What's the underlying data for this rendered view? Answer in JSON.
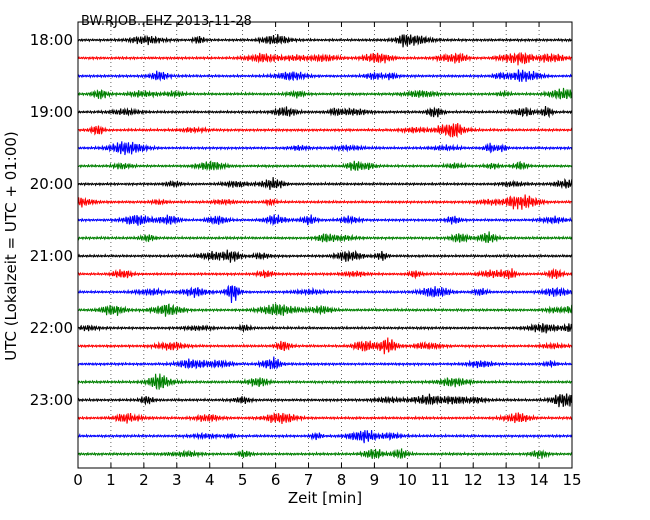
{
  "chart_data": {
    "type": "line",
    "title": "BW.RJOB..EHZ 2013-11-28",
    "xlabel": "Zeit  [min]",
    "ylabel": "UTC (Lokalzeit = UTC + 01:00)",
    "xlim": [
      0,
      15
    ],
    "x_ticks": [
      "0",
      "1",
      "2",
      "3",
      "4",
      "5",
      "6",
      "7",
      "8",
      "9",
      "10",
      "11",
      "12",
      "13",
      "14",
      "15"
    ],
    "y_ticks": [
      "18:00",
      "19:00",
      "20:00",
      "21:00",
      "22:00",
      "23:00"
    ],
    "grid": "vertical dotted",
    "row_interval_min": 15,
    "rows": [
      {
        "start": "18:00",
        "color": "#000000"
      },
      {
        "start": "18:15",
        "color": "#ff0000"
      },
      {
        "start": "18:30",
        "color": "#0000ff"
      },
      {
        "start": "18:45",
        "color": "#008000"
      },
      {
        "start": "19:00",
        "color": "#000000"
      },
      {
        "start": "19:15",
        "color": "#ff0000"
      },
      {
        "start": "19:30",
        "color": "#0000ff"
      },
      {
        "start": "19:45",
        "color": "#008000"
      },
      {
        "start": "20:00",
        "color": "#000000"
      },
      {
        "start": "20:15",
        "color": "#ff0000"
      },
      {
        "start": "20:30",
        "color": "#0000ff"
      },
      {
        "start": "20:45",
        "color": "#008000"
      },
      {
        "start": "21:00",
        "color": "#000000"
      },
      {
        "start": "21:15",
        "color": "#ff0000"
      },
      {
        "start": "21:30",
        "color": "#0000ff"
      },
      {
        "start": "21:45",
        "color": "#008000"
      },
      {
        "start": "22:00",
        "color": "#000000"
      },
      {
        "start": "22:15",
        "color": "#ff0000"
      },
      {
        "start": "22:30",
        "color": "#0000ff"
      },
      {
        "start": "22:45",
        "color": "#008000"
      },
      {
        "start": "23:00",
        "color": "#000000"
      },
      {
        "start": "23:15",
        "color": "#ff0000"
      },
      {
        "start": "23:30",
        "color": "#0000ff"
      },
      {
        "start": "23:45",
        "color": "#008000"
      }
    ]
  }
}
